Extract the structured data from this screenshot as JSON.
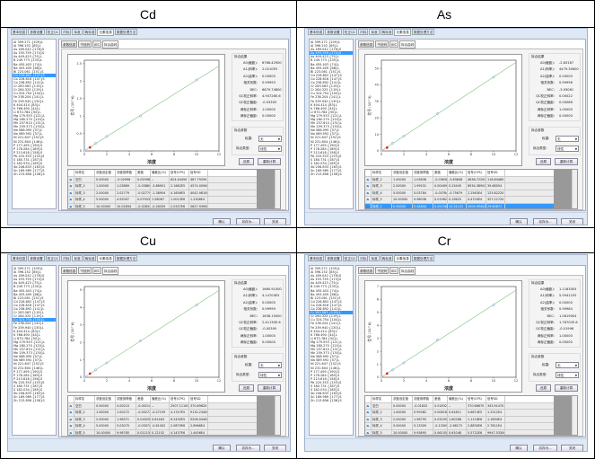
{
  "captions": [
    "Cd",
    "As",
    "Cu",
    "Cr"
  ],
  "ui": {
    "main_tabs": [
      "基本信息",
      "参数设置",
      "校正QC",
      "内标",
      "标准",
      "两标准",
      "元素信息",
      "数据处理方法"
    ],
    "active_main_tab": "元素信息",
    "sub_tabs": [
      "参数信息",
      "干扰列",
      "IEC",
      "拟合曲线"
    ],
    "active_sub_tab": "拟合曲线",
    "fit_result_title": "拟合结果",
    "fit_result_labels": [
      "A0(截距):",
      "A1(斜率):",
      "A2(曲率):",
      "相关系数:",
      "BEC:",
      "QC校正斜率:",
      "QC校正截距:",
      "两标正斜率:",
      "两标正截距:"
    ],
    "fit_param_title": "拟合参数",
    "weight_label": "权重:",
    "weight_value": "无",
    "fit_type_label": "拟合类型:",
    "fit_type_value": "线性",
    "restore_button": "还原",
    "recalc_button": "重新计算",
    "table_headers": [
      "",
      "标样名",
      "浓度设定值",
      "浓度测得值",
      "差值",
      "偏差比(%)",
      "信号(CPS)",
      "信号SD"
    ],
    "ok_button": "确认",
    "save_as_button": "另存为...",
    "close_button": "关闭",
    "x_axis_label": "浓度",
    "colors": {
      "selection": "#3399ff",
      "fit_line": "#7cc47c",
      "point": "#6f8fd6",
      "qc_point": "#ff0000"
    }
  },
  "elements": [
    "Al 309.271 {109}L",
    "Al 396.152 {85}L",
    "As 189.042 {178}S",
    "As 193.759 {174}S",
    "As 449.423 {75}L",
    "B 249.773 {135}L",
    "Ba 455.403 {74}L",
    "Ba 493.409 {68}L",
    "Bi 223.061 {151}S",
    "Cd 228.802 {147}S",
    "Co 228.616 {147}S",
    "Co 238.892 {141}L",
    "Cr 283.563 {119}L",
    "Cr 284.325 {119}L",
    "Cu 324.754 {104}L",
    "Fe 238.204 {141}L",
    "Fe 259.940 {130}L",
    "K 404.414 {83}L",
    "K 766.490 {44}L",
    "Li 670.784 {50}L",
    "Mg 279.553 {121}L",
    "Mg 280.270 {120}L",
    "Mn 257.610 {131}L",
    "Mn 259.373 {130}L",
    "Na 588.995 {57}L",
    "Na 589.592 {57}L",
    "Ni 221.647 {152}S",
    "Ni 231.604 {146}L",
    "P 177.495 {190}S",
    "P 178.284 {189}S",
    "P 213.618 {158}S",
    "Pb 220.353 {153}S",
    "S 180.731 {187}S",
    "S 182.034 {185}S",
    "Sb 206.833 {163}S",
    "Sn 189.989 {177}S",
    "Zn 213.856 {158}S"
  ],
  "panels": [
    {
      "element": "Cd",
      "selected_index": 9,
      "y_axis_label": "信号 (10^6)",
      "fit_results": [
        "6768.42900",
        "2.0210E5",
        "0.00000",
        "0.99993",
        "6679.74800",
        "4.94726E-6",
        "-0.03305",
        "1.00000",
        "0.00000"
      ],
      "rows": [
        [
          "空白",
          "0.00000",
          "-0.02996",
          "0.02996",
          "--",
          "624.44450",
          "487.79290"
        ],
        [
          "标样_2",
          "1.00000",
          "1.03869",
          "-0.03869",
          "-3.86901",
          "2.1662E5",
          "4574.00900"
        ],
        [
          "标样_3",
          "2.00000",
          "2.02779",
          "-0.02779",
          "-1.38954",
          "4.1656E5",
          "4042.98100"
        ],
        [
          "标样_4",
          "5.00000",
          "4.92097",
          "0.07903",
          "1.58067",
          "1.0013E6",
          "1.2306E4"
        ],
        [
          "标样_5",
          "10.00000",
          "10.02834",
          "-0.02834",
          "-0.28339",
          "2.0337E6",
          "5627.93900"
        ]
      ],
      "highlighted_row": -1
    },
    {
      "element": "As",
      "selected_index": 3,
      "y_axis_label": "信号 (10^3)",
      "fit_results": [
        "-2.83187",
        "4479.30600",
        "0.00000",
        "0.99996",
        "-3.93061",
        "0.00022",
        "0.00088",
        "1.00000",
        "0.00000"
      ],
      "rows": [
        [
          "标样_2",
          "1.00000",
          "1.03638",
          "-0.03638",
          "-3.63846",
          "4638.72200",
          "116.84480"
        ],
        [
          "标样_3",
          "2.00000",
          "1.99531",
          "0.00469",
          "0.23445",
          "8934.38900",
          "39.68054"
        ],
        [
          "标样_4",
          "5.00000",
          "5.03784",
          "-0.03784",
          "-0.75679",
          "2.2563E4",
          "125.82220"
        ],
        [
          "标样_5",
          "10.00000",
          "9.98038",
          "0.01962",
          "0.19625",
          "4.4704E4",
          "327.22720"
        ],
        [
          "标样_1",
          "0.50000",
          "0.44844",
          "0.05156",
          "10.31131",
          "2004.99400",
          "29.60871"
        ]
      ],
      "highlighted_row": 4
    },
    {
      "element": "Cu",
      "selected_index": 14,
      "y_axis_label": "信号 (10^6)",
      "fit_results": [
        "1660.91000",
        "4.14704E5",
        "0.00000",
        "0.99999",
        "1636.15000",
        "2.41130E-6",
        "-0.00395",
        "1.00000",
        "0.00000"
      ],
      "rows": [
        [
          "空白",
          "0.00000",
          "0.00210",
          "-0.00210",
          "--",
          "2507.11100",
          "370.69620"
        ],
        [
          "标样_2",
          "1.00000",
          "1.00272",
          "-0.00272",
          "-0.27199",
          "4.1747E5",
          "9132.23400"
        ],
        [
          "标样_3",
          "2.00000",
          "1.98371",
          "0.01629",
          "0.81463",
          "8.2430E5",
          "9206.04400"
        ],
        [
          "标样_4",
          "5.00000",
          "5.03070",
          "-0.03070",
          "-0.61402",
          "2.0879E6",
          "2.8966E4"
        ],
        [
          "标样_5",
          "10.00000",
          "9.98785",
          "0.01215",
          "0.12152",
          "4.1437E6",
          "1.4456E4"
        ]
      ],
      "highlighted_row": -1
    },
    {
      "element": "Cr",
      "selected_index": 12,
      "y_axis_label": "信号 (10^6)",
      "fit_results": [
        "1.11630E4",
        "5.59411E5",
        "0.00000",
        "0.99984",
        "1.06190E4",
        "1.78702E-6",
        "-0.01998",
        "1.00000",
        "0.00000"
      ],
      "rows": [
        [
          "空白",
          "0.00000",
          "-0.01832",
          "0.01832",
          "--",
          "370.66670",
          "343.91470"
        ],
        [
          "标样_2",
          "1.00000",
          "0.99382",
          "0.00618",
          "0.61811",
          "5.6674E5",
          "1.2312E4"
        ],
        [
          "标样_3",
          "2.00000",
          "1.96795",
          "0.03205",
          "1.60268",
          "1.1118E6",
          "1.1694E4"
        ],
        [
          "标样_4",
          "5.00000",
          "5.13309",
          "-0.13309",
          "-2.66172",
          "2.8830E6",
          "2.7811E4"
        ],
        [
          "标样_5",
          "10.00000",
          "9.93895",
          "0.06105",
          "0.61048",
          "5.5732E6",
          "9947.53300"
        ]
      ],
      "highlighted_row": -1
    }
  ],
  "chart_data": [
    {
      "type": "scatter",
      "title": "Cd",
      "xlabel": "浓度",
      "ylabel": "信号 (10^6)",
      "xlim": [
        0,
        12
      ],
      "ylim": [
        0,
        2.6
      ],
      "xticks": [
        0,
        2,
        4,
        6,
        8,
        10,
        12
      ],
      "yticks": [
        0,
        0.5,
        1.0,
        1.5,
        2.0,
        2.5
      ],
      "points": [
        [
          0,
          0.0006
        ],
        [
          1,
          0.2166
        ],
        [
          2,
          0.4166
        ],
        [
          5,
          1.0013
        ],
        [
          10,
          2.0337
        ]
      ],
      "qc_point": [
        0.5,
        0.1
      ],
      "fit": {
        "intercept": 0.0068,
        "slope": 0.2021
      }
    },
    {
      "type": "scatter",
      "title": "As",
      "xlabel": "浓度",
      "ylabel": "信号 (10^3)",
      "xlim": [
        0,
        12
      ],
      "ylim": [
        0,
        55
      ],
      "xticks": [
        0,
        2,
        4,
        6,
        8,
        10,
        12
      ],
      "yticks": [
        0,
        10,
        20,
        30,
        40,
        50
      ],
      "points": [
        [
          0,
          0
        ],
        [
          1,
          4.639
        ],
        [
          2,
          8.934
        ],
        [
          5,
          22.563
        ],
        [
          10,
          44.704
        ]
      ],
      "qc_point": [
        0.5,
        2.005
      ],
      "fit": {
        "intercept": -0.0028,
        "slope": 4.4793
      }
    },
    {
      "type": "scatter",
      "title": "Cu",
      "xlabel": "浓度",
      "ylabel": "信号 (10^6)",
      "xlim": [
        0,
        12
      ],
      "ylim": [
        0,
        5.2
      ],
      "xticks": [
        0,
        2,
        4,
        6,
        8,
        10,
        12
      ],
      "yticks": [
        0,
        1,
        2,
        3,
        4,
        5
      ],
      "points": [
        [
          0,
          0.0025
        ],
        [
          1,
          0.4175
        ],
        [
          2,
          0.8243
        ],
        [
          5,
          2.0879
        ],
        [
          10,
          4.1437
        ]
      ],
      "qc_point": [
        0.5,
        0.21
      ],
      "fit": {
        "intercept": 0.0017,
        "slope": 0.4147
      }
    },
    {
      "type": "scatter",
      "title": "Cr",
      "xlabel": "浓度",
      "ylabel": "信号 (10^6)",
      "xlim": [
        0,
        12
      ],
      "ylim": [
        0,
        7
      ],
      "xticks": [
        0,
        2,
        4,
        6,
        8,
        10,
        12
      ],
      "yticks": [
        0,
        1,
        2,
        3,
        4,
        5,
        6,
        7
      ],
      "points": [
        [
          0,
          0.0004
        ],
        [
          1,
          0.5667
        ],
        [
          2,
          1.1118
        ],
        [
          5,
          2.883
        ],
        [
          10,
          5.5732
        ]
      ],
      "qc_point": [
        0.5,
        0.29
      ],
      "fit": {
        "intercept": 0.0112,
        "slope": 0.5594
      }
    }
  ]
}
